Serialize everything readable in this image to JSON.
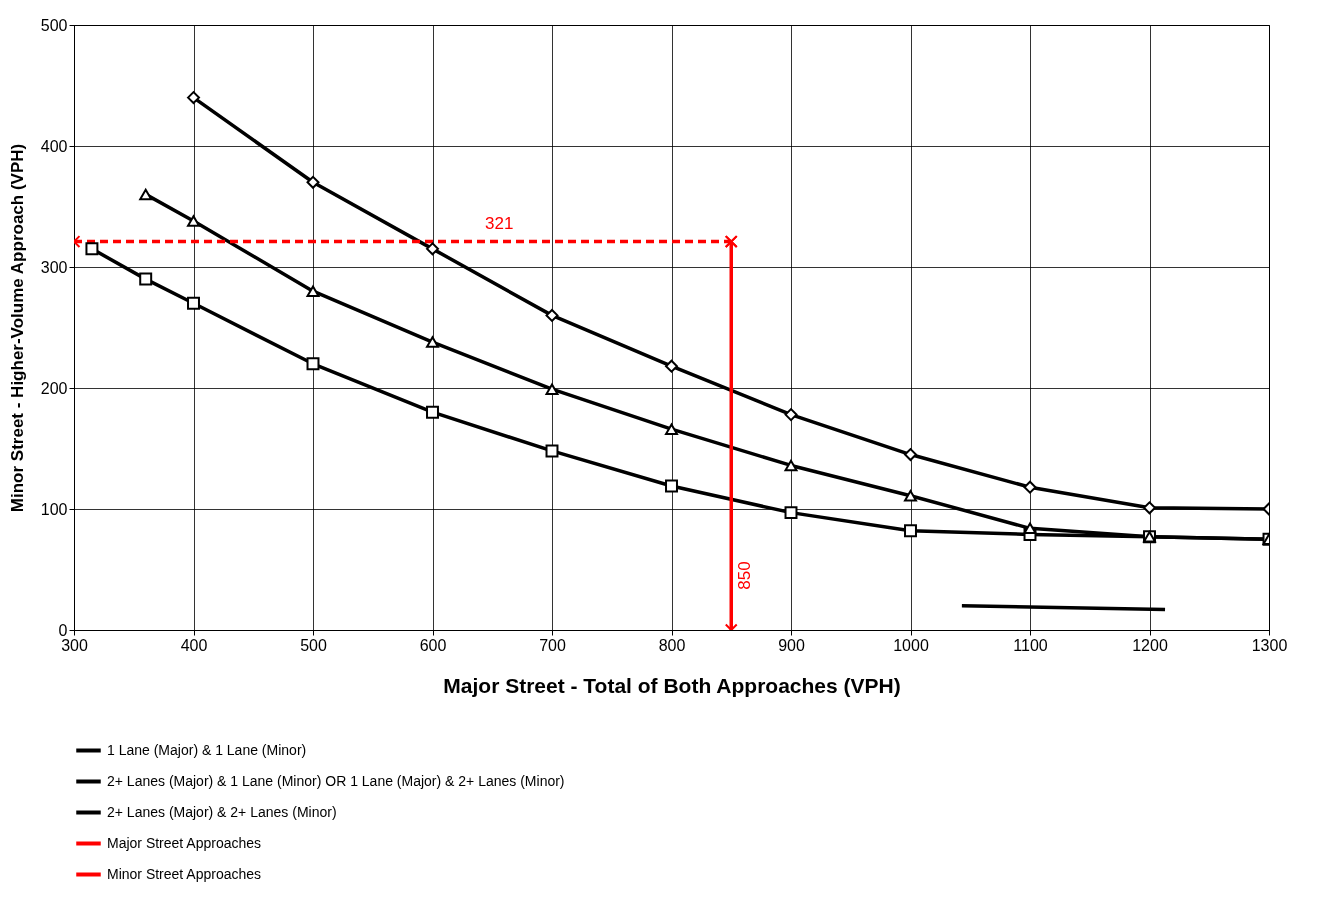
{
  "chart_data": {
    "type": "line",
    "xlabel": "Major Street - Total of Both Approaches (VPH)",
    "ylabel": "Minor Street - Higher-Volume Approach (VPH)",
    "xlim": [
      300,
      1300
    ],
    "xticks": [
      300,
      400,
      500,
      600,
      700,
      800,
      900,
      1000,
      1100,
      1200,
      1300
    ],
    "ylim": [
      0,
      500
    ],
    "yticks": [
      0,
      100,
      200,
      300,
      400,
      500
    ],
    "grid": true,
    "legend": "bottom",
    "series": [
      {
        "name": "1 Lane (Major) & 1 Lane (Minor)",
        "color": "#000000",
        "marker": "square",
        "line_style": "solid",
        "x": [
          315,
          360,
          400,
          500,
          600,
          700,
          800,
          900,
          1000,
          1100,
          1200,
          1300
        ],
        "values": [
          315,
          290,
          270,
          220,
          180,
          148,
          119,
          97,
          82,
          79,
          77,
          75
        ]
      },
      {
        "name": "2+ Lanes (Major) & 1 Lane (Minor) OR 1 Lane (Major) & 2+ Lanes (Minor)",
        "color": "#000000",
        "marker": "triangle",
        "line_style": "solid",
        "x": [
          360,
          400,
          500,
          600,
          700,
          800,
          900,
          1000,
          1100,
          1200,
          1300
        ],
        "values": [
          360,
          338,
          280,
          238,
          199,
          166,
          136,
          111,
          84,
          77,
          75
        ]
      },
      {
        "name": "2+ Lanes (Major) & 2+ Lanes (Minor)",
        "color": "#000000",
        "marker": "diamond",
        "line_style": "solid",
        "x": [
          400,
          500,
          600,
          700,
          800,
          900,
          1000,
          1100,
          1200,
          1300
        ],
        "values": [
          440,
          370,
          315,
          260,
          218,
          178,
          145,
          118,
          101,
          100
        ]
      },
      {
        "name": "Major Street Approaches",
        "color": "#ff0000",
        "marker": "cross",
        "line_style": "solid",
        "x": [
          850,
          850
        ],
        "values": [
          0,
          321
        ]
      },
      {
        "name": "Minor Street Approaches",
        "color": "#ff0000",
        "marker": "cross",
        "line_style": "dashed",
        "x": [
          300,
          850
        ],
        "values": [
          321,
          321
        ]
      },
      {
        "color": "#000000",
        "marker": "none",
        "line_style": "solid",
        "x": [
          1043,
          1213
        ],
        "values": [
          20,
          17
        ]
      }
    ],
    "annotations": [
      {
        "text": "321",
        "x": 650,
        "y": 321
      },
      {
        "text": "850",
        "x": 850,
        "y": 45
      }
    ]
  }
}
